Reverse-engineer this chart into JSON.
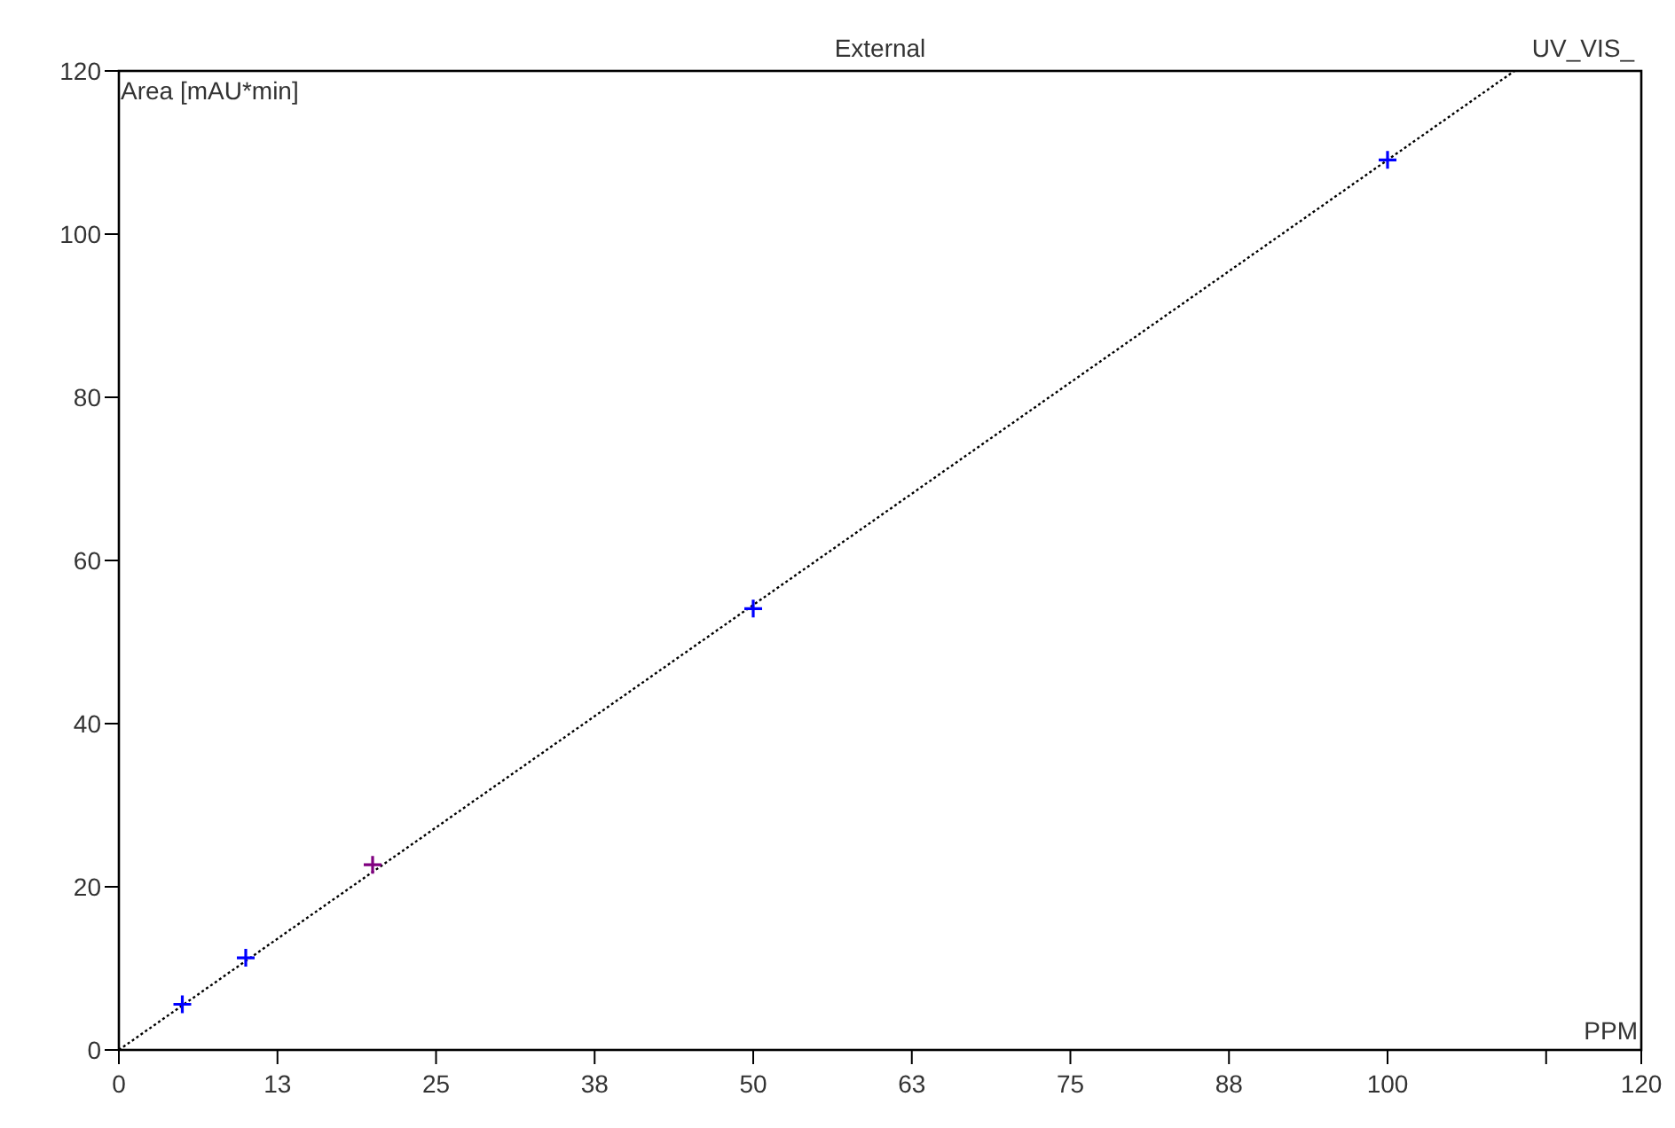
{
  "chart_data": {
    "type": "scatter",
    "title": "External",
    "xlabel": "PPM",
    "ylabel": "Area  [mAU*min]",
    "annotations": [
      "UV_VIS_"
    ],
    "xlim": [
      0,
      120
    ],
    "ylim": [
      0,
      120
    ],
    "xticks": [
      0,
      {
        "value": 12.5,
        "label": "13"
      },
      25,
      {
        "value": 37.5,
        "label": "38"
      },
      50,
      {
        "value": 62.5,
        "label": "63"
      },
      75,
      {
        "value": 87.5,
        "label": "88"
      },
      100,
      {
        "value": 112.5,
        "label": null
      },
      120
    ],
    "yticks": [
      0,
      20,
      40,
      60,
      80,
      100,
      120
    ],
    "grid": false,
    "series": [
      {
        "type": "line",
        "color": "#000000",
        "x": [
          0,
          110
        ],
        "values": [
          0,
          120
        ],
        "line_style": "dotted"
      },
      {
        "marker": "cross",
        "x": [
          5,
          10,
          20,
          50,
          100
        ],
        "values": [
          5.6,
          11.3,
          22.7,
          54.1,
          109.1
        ],
        "colors": [
          "#0000ff",
          "#0000ff",
          "#800080",
          "#0000ff",
          "#0000ff"
        ]
      }
    ]
  }
}
